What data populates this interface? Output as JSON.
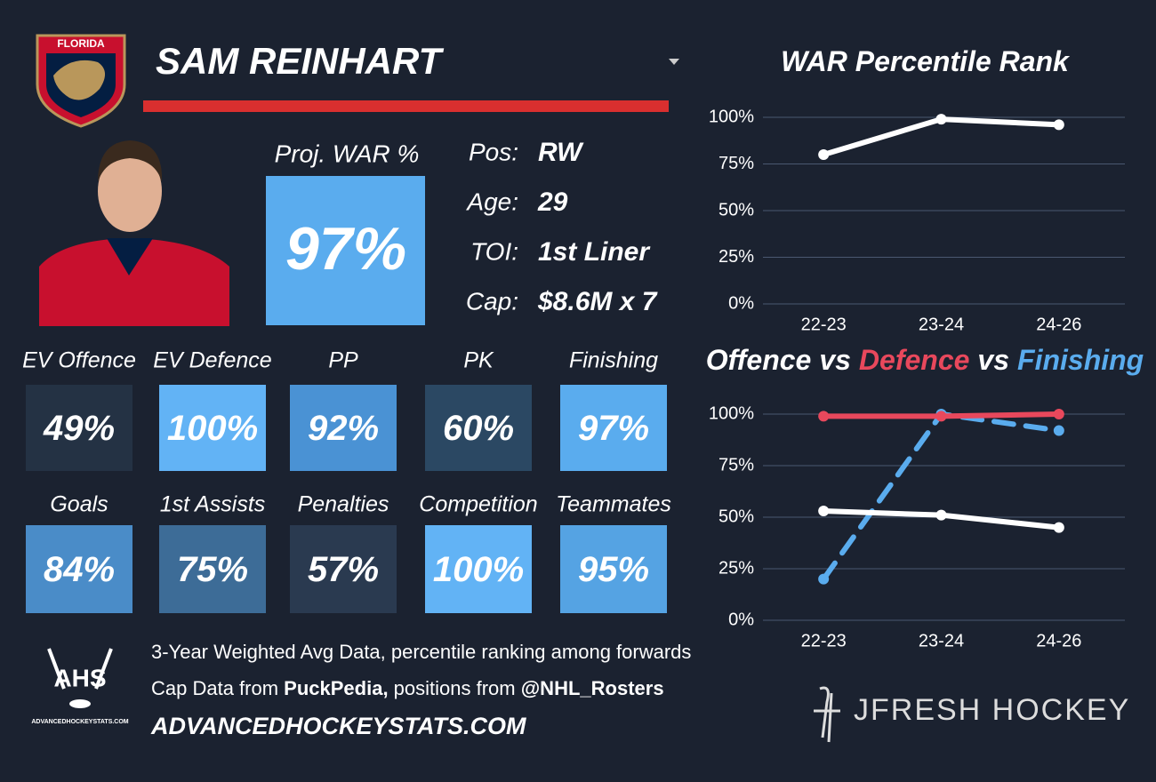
{
  "logo_text": "FLORIDA",
  "player": {
    "name": "SAM REINHART",
    "proj_war_label": "Proj. WAR %",
    "proj_war": "97%",
    "proj_war_color": "#5aacee",
    "info": [
      {
        "label": "Pos:",
        "value": "RW"
      },
      {
        "label": "Age:",
        "value": "29"
      },
      {
        "label": "TOI:",
        "value": "1st Liner"
      },
      {
        "label": "Cap:",
        "value": "$8.6M x 7"
      }
    ]
  },
  "tiles": [
    {
      "label": "EV Offence",
      "value": "49%",
      "color": "#243244"
    },
    {
      "label": "EV Defence",
      "value": "100%",
      "color": "#62b3f5"
    },
    {
      "label": "PP",
      "value": "92%",
      "color": "#4a92d4"
    },
    {
      "label": "PK",
      "value": "60%",
      "color": "#2b4863"
    },
    {
      "label": "Finishing",
      "value": "97%",
      "color": "#5aacee"
    },
    {
      "label": "Goals",
      "value": "84%",
      "color": "#4a8cc8"
    },
    {
      "label": "1st Assists",
      "value": "75%",
      "color": "#3d6c97"
    },
    {
      "label": "Penalties",
      "value": "57%",
      "color": "#2a3a50"
    },
    {
      "label": "Competition",
      "value": "100%",
      "color": "#62b3f5"
    },
    {
      "label": "Teammates",
      "value": "95%",
      "color": "#55a3e3"
    }
  ],
  "footer": {
    "ahs": "AHS",
    "ahs_url": "ADVANCEDHOCKEYSTATS.COM",
    "lines": [
      [
        {
          "text": "3-Year Weighted Avg Data, percentile ranking among forwards",
          "bold": false
        }
      ],
      [
        {
          "text": "Cap Data from ",
          "bold": false
        },
        {
          "text": "PuckPedia,",
          "bold": true
        },
        {
          "text": " positions from ",
          "bold": false
        },
        {
          "text": "@NHL_Rosters",
          "bold": true
        }
      ]
    ],
    "site": "ADVANCEDHOCKEYSTATS.COM",
    "brand": "JFRESH HOCKEY"
  },
  "chart_data": [
    {
      "type": "line",
      "title": [
        {
          "text": "WAR Percentile Rank",
          "color": "#ffffff"
        }
      ],
      "categories": [
        "22-23",
        "23-24",
        "24-26"
      ],
      "series": [
        {
          "color": "#ffffff",
          "dash": false,
          "values": [
            80,
            99,
            96
          ]
        }
      ],
      "ylim": [
        0,
        100
      ],
      "yticks": [
        {
          "value": 0,
          "label": "0%"
        },
        {
          "value": 25,
          "label": "25%"
        },
        {
          "value": 50,
          "label": "50%"
        },
        {
          "value": 75,
          "label": "75%"
        },
        {
          "value": 100,
          "label": "100%"
        }
      ],
      "grid": true
    },
    {
      "type": "line",
      "title": [
        {
          "text": "Offence",
          "color": "#ffffff"
        },
        {
          "text": "vs",
          "color": "#ffffff"
        },
        {
          "text": "Defence",
          "color": "#e8485c"
        },
        {
          "text": "vs",
          "color": "#ffffff"
        },
        {
          "text": "Finishing",
          "color": "#5aacee"
        }
      ],
      "categories": [
        "22-23",
        "23-24",
        "24-26"
      ],
      "series": [
        {
          "color": "#5aacee",
          "dash": true,
          "values": [
            20,
            100,
            92
          ]
        },
        {
          "color": "#ffffff",
          "dash": false,
          "values": [
            53,
            51,
            45
          ]
        },
        {
          "color": "#e8485c",
          "dash": false,
          "values": [
            99,
            99,
            100
          ]
        }
      ],
      "ylim": [
        0,
        100
      ],
      "yticks": [
        {
          "value": 0,
          "label": "0%"
        },
        {
          "value": 25,
          "label": "25%"
        },
        {
          "value": 50,
          "label": "50%"
        },
        {
          "value": 75,
          "label": "75%"
        },
        {
          "value": 100,
          "label": "100%"
        }
      ],
      "grid": true
    }
  ]
}
